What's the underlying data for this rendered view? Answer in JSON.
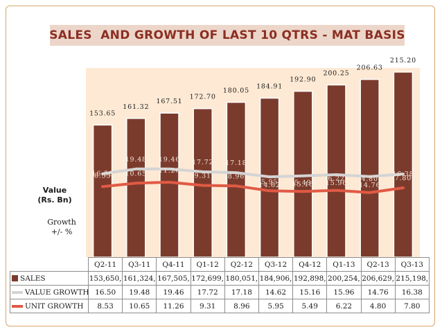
{
  "title": "SALES  AND GROWTH OF LAST 10 QTRS - MAT BASIS",
  "y_label": [
    "Value",
    "(Rs. Bn)"
  ],
  "growth_label": [
    "Growth",
    "+/- %"
  ],
  "colors": {
    "bar": "#7b3b2c",
    "value_growth": "#d4d4d4",
    "unit_growth": "#e05a45",
    "title": "#8b2e22",
    "plot_bg": "#fde9d4"
  },
  "chart_data": {
    "type": "bar",
    "title": "SALES  AND GROWTH OF LAST 10 QTRS - MAT BASIS",
    "categories": [
      "Q2-11",
      "Q3-11",
      "Q4-11",
      "Q1-12",
      "Q2-12",
      "Q3-12",
      "Q4-12",
      "Q1-13",
      "Q2-13",
      "Q3-13"
    ],
    "ylabel": "Value (Rs. Bn)",
    "ylim": [
      0,
      220
    ],
    "growth_ylim": [
      -24,
      40
    ],
    "series": [
      {
        "name": "SALES",
        "type": "bar",
        "values": [
          153.65,
          161.32,
          167.51,
          172.7,
          180.05,
          184.91,
          192.9,
          200.25,
          206.63,
          215.2
        ],
        "labels": [
          "153.65",
          "161.32",
          "167.51",
          "172.70",
          "180.05",
          "184.91",
          "192.90",
          "200.25",
          "206.63",
          "215.20"
        ],
        "table_labels": [
          "153,650,",
          "161,324,",
          "167,505,",
          "172,699,",
          "180,051,",
          "184,906,",
          "192,898,",
          "200,254,",
          "206,629,",
          "215,198,"
        ]
      },
      {
        "name": "VALUE GROWTH",
        "type": "line",
        "values": [
          16.5,
          19.48,
          19.46,
          17.72,
          17.18,
          14.62,
          15.16,
          15.96,
          14.76,
          16.38
        ],
        "labels": [
          "16.50",
          "19.48",
          "19.46",
          "17.72",
          "17.18",
          "14.62",
          "15.16",
          "15.96",
          "14.76",
          "16.38"
        ]
      },
      {
        "name": "UNIT GROWTH",
        "type": "line",
        "values": [
          8.53,
          10.65,
          11.26,
          9.31,
          8.96,
          5.95,
          5.49,
          6.22,
          4.8,
          7.8
        ],
        "labels": [
          "8.53",
          "10.65",
          "11.26",
          "9.31",
          "8.96",
          "5.95",
          "5.49",
          "6.22",
          "4.80",
          "7.80"
        ]
      }
    ]
  }
}
